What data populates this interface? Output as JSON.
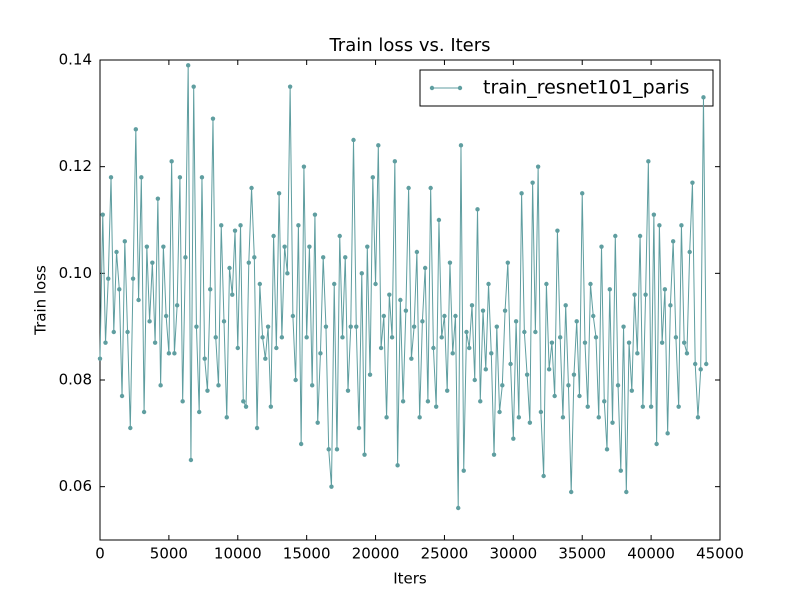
{
  "chart_data": {
    "type": "line",
    "title": "Train loss  vs. Iters",
    "x_label": "Iters",
    "y_label": "Train loss",
    "x": [
      0,
      200,
      400,
      600,
      800,
      1000,
      1200,
      1400,
      1600,
      1800,
      2000,
      2200,
      2400,
      2600,
      2800,
      3000,
      3200,
      3400,
      3600,
      3800,
      4000,
      4200,
      4400,
      4600,
      4800,
      5000,
      5200,
      5400,
      5600,
      5800,
      6000,
      6200,
      6400,
      6600,
      6800,
      7000,
      7200,
      7400,
      7600,
      7800,
      8000,
      8200,
      8400,
      8600,
      8800,
      9000,
      9200,
      9400,
      9600,
      9800,
      10000,
      10200,
      10400,
      10600,
      10800,
      11000,
      11200,
      11400,
      11600,
      11800,
      12000,
      12200,
      12400,
      12600,
      12800,
      13000,
      13200,
      13400,
      13600,
      13800,
      14000,
      14200,
      14400,
      14600,
      14800,
      15000,
      15200,
      15400,
      15600,
      15800,
      16000,
      16200,
      16400,
      16600,
      16800,
      17000,
      17200,
      17400,
      17600,
      17800,
      18000,
      18200,
      18400,
      18600,
      18800,
      19000,
      19200,
      19400,
      19600,
      19800,
      20000,
      20200,
      20400,
      20600,
      20800,
      21000,
      21200,
      21400,
      21600,
      21800,
      22000,
      22200,
      22400,
      22600,
      22800,
      23000,
      23200,
      23400,
      23600,
      23800,
      24000,
      24200,
      24400,
      24600,
      24800,
      25000,
      25200,
      25400,
      25600,
      25800,
      26000,
      26200,
      26400,
      26600,
      26800,
      27000,
      27200,
      27400,
      27600,
      27800,
      28000,
      28200,
      28400,
      28600,
      28800,
      29000,
      29200,
      29400,
      29600,
      29800,
      30000,
      30200,
      30400,
      30600,
      30800,
      31000,
      31200,
      31400,
      31600,
      31800,
      32000,
      32200,
      32400,
      32600,
      32800,
      33000,
      33200,
      33400,
      33600,
      33800,
      34000,
      34200,
      34400,
      34600,
      34800,
      35000,
      35200,
      35400,
      35600,
      35800,
      36000,
      36200,
      36400,
      36600,
      36800,
      37000,
      37200,
      37400,
      37600,
      37800,
      38000,
      38200,
      38400,
      38600,
      38800,
      39000,
      39200,
      39400,
      39600,
      39800,
      40000,
      40200,
      40400,
      40600,
      40800,
      41000,
      41200,
      41400,
      41600,
      41800,
      42000,
      42200,
      42400,
      42600,
      42800,
      43000,
      43200,
      43400,
      43600,
      43800,
      44000
    ],
    "series": [
      {
        "name": "train_resnet101_paris",
        "color": "#5f9ea0",
        "values": [
          0.084,
          0.111,
          0.087,
          0.099,
          0.118,
          0.089,
          0.104,
          0.097,
          0.077,
          0.106,
          0.089,
          0.071,
          0.099,
          0.127,
          0.095,
          0.118,
          0.074,
          0.105,
          0.091,
          0.102,
          0.087,
          0.114,
          0.079,
          0.105,
          0.092,
          0.085,
          0.121,
          0.085,
          0.094,
          0.118,
          0.076,
          0.103,
          0.139,
          0.065,
          0.135,
          0.09,
          0.074,
          0.118,
          0.084,
          0.078,
          0.097,
          0.129,
          0.088,
          0.079,
          0.109,
          0.091,
          0.073,
          0.101,
          0.096,
          0.108,
          0.086,
          0.109,
          0.076,
          0.075,
          0.102,
          0.116,
          0.103,
          0.071,
          0.098,
          0.088,
          0.084,
          0.09,
          0.075,
          0.107,
          0.086,
          0.115,
          0.088,
          0.105,
          0.1,
          0.135,
          0.092,
          0.08,
          0.109,
          0.068,
          0.12,
          0.088,
          0.105,
          0.079,
          0.111,
          0.072,
          0.085,
          0.103,
          0.09,
          0.067,
          0.06,
          0.098,
          0.067,
          0.107,
          0.088,
          0.103,
          0.078,
          0.09,
          0.125,
          0.09,
          0.071,
          0.1,
          0.066,
          0.105,
          0.081,
          0.118,
          0.098,
          0.124,
          0.086,
          0.092,
          0.073,
          0.096,
          0.088,
          0.121,
          0.064,
          0.095,
          0.076,
          0.093,
          0.116,
          0.084,
          0.09,
          0.104,
          0.073,
          0.091,
          0.101,
          0.076,
          0.116,
          0.086,
          0.075,
          0.11,
          0.088,
          0.092,
          0.078,
          0.102,
          0.085,
          0.092,
          0.056,
          0.124,
          0.063,
          0.089,
          0.086,
          0.094,
          0.08,
          0.112,
          0.076,
          0.093,
          0.082,
          0.098,
          0.085,
          0.066,
          0.09,
          0.074,
          0.079,
          0.093,
          0.102,
          0.083,
          0.069,
          0.091,
          0.073,
          0.115,
          0.089,
          0.081,
          0.072,
          0.117,
          0.089,
          0.12,
          0.074,
          0.062,
          0.098,
          0.082,
          0.087,
          0.077,
          0.108,
          0.088,
          0.073,
          0.094,
          0.079,
          0.059,
          0.081,
          0.091,
          0.077,
          0.115,
          0.087,
          0.075,
          0.098,
          0.092,
          0.088,
          0.073,
          0.105,
          0.076,
          0.067,
          0.097,
          0.072,
          0.107,
          0.079,
          0.063,
          0.09,
          0.059,
          0.087,
          0.078,
          0.096,
          0.085,
          0.107,
          0.075,
          0.096,
          0.121,
          0.075,
          0.111,
          0.068,
          0.109,
          0.087,
          0.097,
          0.07,
          0.094,
          0.106,
          0.088,
          0.075,
          0.109,
          0.087,
          0.085,
          0.104,
          0.117,
          0.083,
          0.073,
          0.082,
          0.133,
          0.083
        ]
      }
    ],
    "xlim": [
      0,
      45000
    ],
    "xticks": [
      0,
      5000,
      10000,
      15000,
      20000,
      25000,
      30000,
      35000,
      40000,
      45000
    ],
    "ylim": [
      0.05,
      0.14
    ],
    "yticks": [
      0.06,
      0.08,
      {
        "value": 0.1,
        "label": "0.10"
      },
      0.12,
      0.14
    ],
    "grid": false,
    "legend_position": "upper right"
  }
}
